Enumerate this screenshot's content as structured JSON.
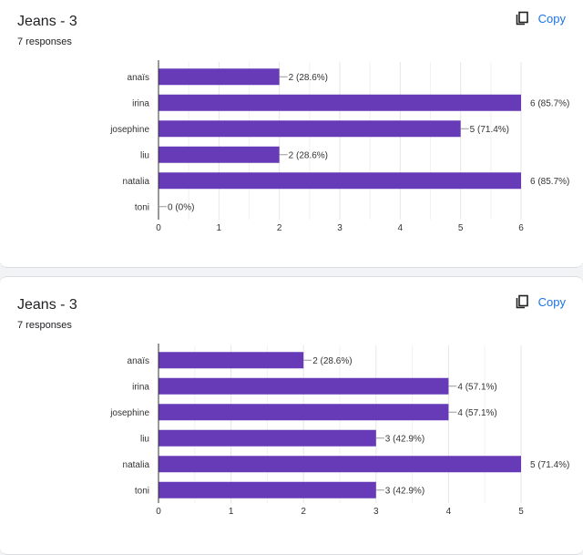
{
  "copy_icon": "copy-icon",
  "accent": "#1a73e8",
  "bar_color": "#673ab7",
  "chart_data": [
    {
      "type": "bar",
      "orientation": "horizontal",
      "title": "Jeans - 3",
      "subtitle": "7 responses",
      "copy_label": "Copy",
      "categories": [
        "anaïs",
        "irina",
        "josephine",
        "liu",
        "natalia",
        "toni"
      ],
      "values": [
        2,
        6,
        5,
        2,
        6,
        0
      ],
      "data_labels": [
        "2 (28.6%)",
        "6 (85.7%)",
        "5 (71.4%)",
        "2 (28.6%)",
        "6 (85.7%)",
        "0 (0%)"
      ],
      "xlim": [
        0,
        6
      ],
      "xticks": [
        0,
        1,
        2,
        3,
        4,
        5,
        6
      ],
      "grid": true
    },
    {
      "type": "bar",
      "orientation": "horizontal",
      "title": "Jeans - 3",
      "subtitle": "7 responses",
      "copy_label": "Copy",
      "categories": [
        "anaïs",
        "irina",
        "josephine",
        "liu",
        "natalia",
        "toni"
      ],
      "values": [
        2,
        4,
        4,
        3,
        5,
        3
      ],
      "data_labels": [
        "2 (28.6%)",
        "4 (57.1%)",
        "4 (57.1%)",
        "3 (42.9%)",
        "5 (71.4%)",
        "3 (42.9%)"
      ],
      "xlim": [
        0,
        5
      ],
      "xticks": [
        0,
        1,
        2,
        3,
        4,
        5
      ],
      "grid": true
    }
  ]
}
